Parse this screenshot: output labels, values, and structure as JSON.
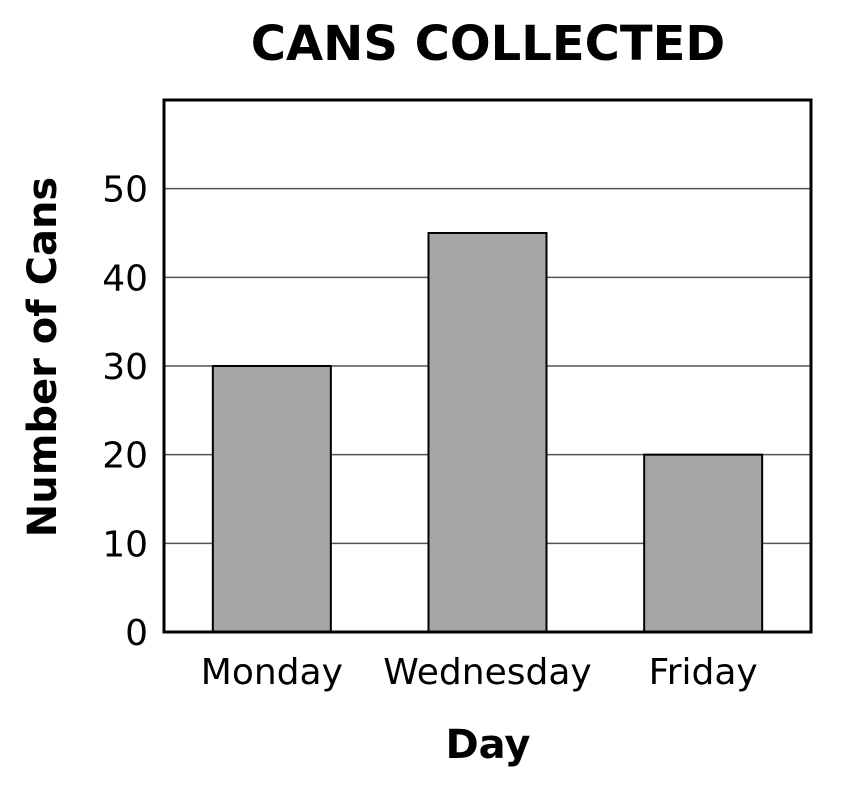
{
  "chart_data": {
    "type": "bar",
    "title": "CANS COLLECTED",
    "xlabel": "Day",
    "ylabel": "Number of Cans",
    "categories": [
      "Monday",
      "Wednesday",
      "Friday"
    ],
    "values": [
      30,
      45,
      20
    ],
    "ylim": [
      0,
      60
    ],
    "yticks": [
      0,
      10,
      20,
      30,
      40,
      50
    ],
    "grid": true,
    "colors": {
      "bar": "#a6a6a6",
      "bar_stroke": "#000000",
      "grid": "#555555",
      "frame": "#000000"
    }
  }
}
